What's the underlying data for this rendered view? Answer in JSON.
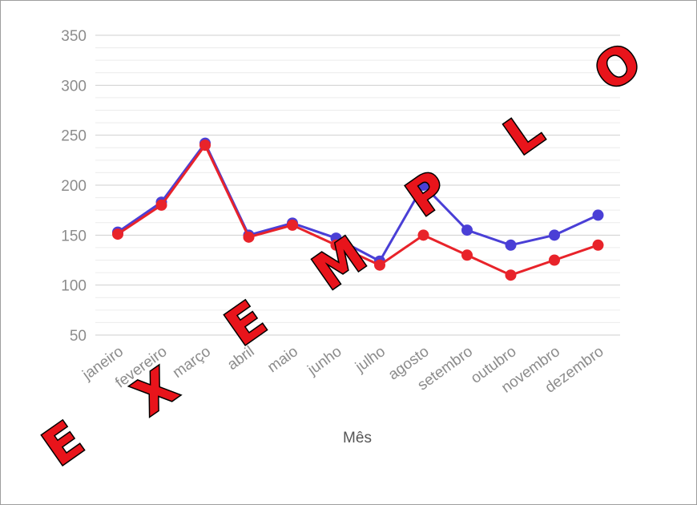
{
  "chart_data": {
    "type": "line",
    "xlabel": "Mês",
    "ylabel": "",
    "categories": [
      "janeiro",
      "fevereiro",
      "março",
      "abril",
      "maio",
      "junho",
      "julho",
      "agosto",
      "setembro",
      "outubro",
      "novembro",
      "dezembro"
    ],
    "y_ticks": [
      "50",
      "100",
      "150",
      "200",
      "250",
      "300",
      "350"
    ],
    "ylim": [
      50,
      350
    ],
    "grid": true,
    "series": [
      {
        "color": "#4a3fd6",
        "values": [
          153,
          183,
          242,
          150,
          162,
          147,
          124,
          200,
          155,
          140,
          150,
          170
        ]
      },
      {
        "color": "#e8232a",
        "values": [
          151,
          180,
          240,
          148,
          160,
          140,
          120,
          150,
          130,
          110,
          125,
          140
        ]
      }
    ]
  },
  "watermark": {
    "letters": [
      "E",
      "X",
      "E",
      "M",
      "P",
      "L",
      "O"
    ],
    "color": "#e8141b"
  }
}
